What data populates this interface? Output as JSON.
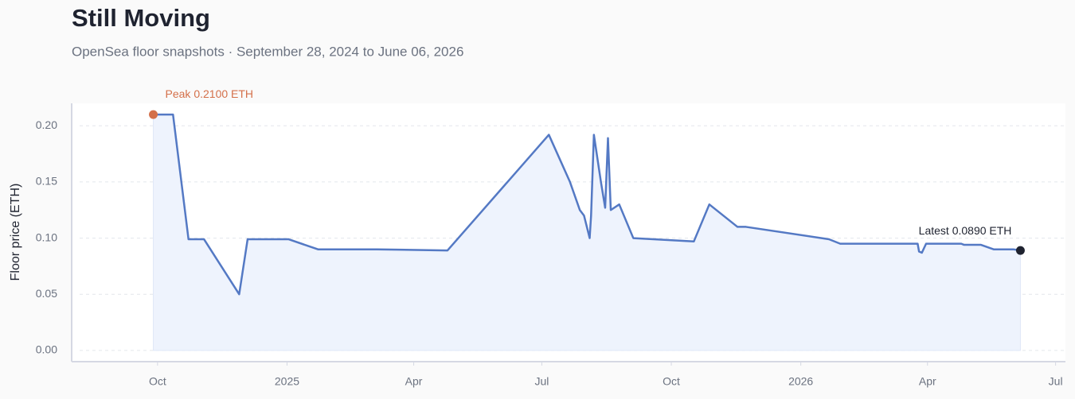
{
  "chart_data": {
    "type": "line",
    "title": "Still Moving",
    "subtitle": "OpenSea floor snapshots · September 28, 2024 to June 06, 2026",
    "y_label": "Floor price (ETH)",
    "peak_label": "Peak 0.2100 ETH",
    "latest_label": "Latest 0.0890 ETH",
    "x": [
      "2024-09-28",
      "2024-10-12",
      "2024-10-23",
      "2024-11-03",
      "2024-11-28",
      "2024-12-04",
      "2025-01-02",
      "2025-01-23",
      "2025-03-06",
      "2025-04-25",
      "2025-07-06",
      "2025-07-21",
      "2025-07-28",
      "2025-07-31",
      "2025-08-04",
      "2025-08-05",
      "2025-08-07",
      "2025-08-12",
      "2025-08-15",
      "2025-08-17",
      "2025-08-19",
      "2025-08-25",
      "2025-09-04",
      "2025-10-17",
      "2025-10-28",
      "2025-11-17",
      "2025-11-23",
      "2026-01-21",
      "2026-01-29",
      "2026-03-25",
      "2026-03-26",
      "2026-03-28",
      "2026-03-31",
      "2026-04-25",
      "2026-04-27",
      "2026-05-09",
      "2026-05-18",
      "2026-06-01",
      "2026-06-06"
    ],
    "series": [
      {
        "name": "Floor price",
        "color": "#5479c4",
        "values": [
          0.21,
          0.21,
          0.099,
          0.099,
          0.05,
          0.099,
          0.099,
          0.09,
          0.09,
          0.089,
          0.192,
          0.15,
          0.125,
          0.12,
          0.1,
          0.12,
          0.192,
          0.15,
          0.127,
          0.189,
          0.125,
          0.13,
          0.1,
          0.097,
          0.13,
          0.11,
          0.11,
          0.099,
          0.095,
          0.095,
          0.088,
          0.087,
          0.095,
          0.095,
          0.094,
          0.094,
          0.09,
          0.09,
          0.089
        ]
      }
    ],
    "peak_color": "#d4704a",
    "latest_color": "#1f2330",
    "area_color": "#eef3fd",
    "xlim": [
      "2024-08-01",
      "2026-07-08"
    ],
    "xticks": [
      {
        "value": "2024-10-01",
        "label": "Oct"
      },
      {
        "value": "2025-01-01",
        "label": "2025"
      },
      {
        "value": "2025-04-01",
        "label": "Apr"
      },
      {
        "value": "2025-07-01",
        "label": "Jul"
      },
      {
        "value": "2025-10-01",
        "label": "Oct"
      },
      {
        "value": "2026-01-01",
        "label": "2026"
      },
      {
        "value": "2026-04-01",
        "label": "Apr"
      },
      {
        "value": "2026-07-01",
        "label": "Jul"
      }
    ],
    "ylim": [
      -0.01,
      0.22
    ],
    "yticks": [
      {
        "value": 0,
        "label": "0.00"
      },
      {
        "value": 0.05,
        "label": "0.05"
      },
      {
        "value": 0.1,
        "label": "0.10"
      },
      {
        "value": 0.15,
        "label": "0.15"
      },
      {
        "value": 0.2,
        "label": "0.20"
      }
    ],
    "grid": true
  }
}
